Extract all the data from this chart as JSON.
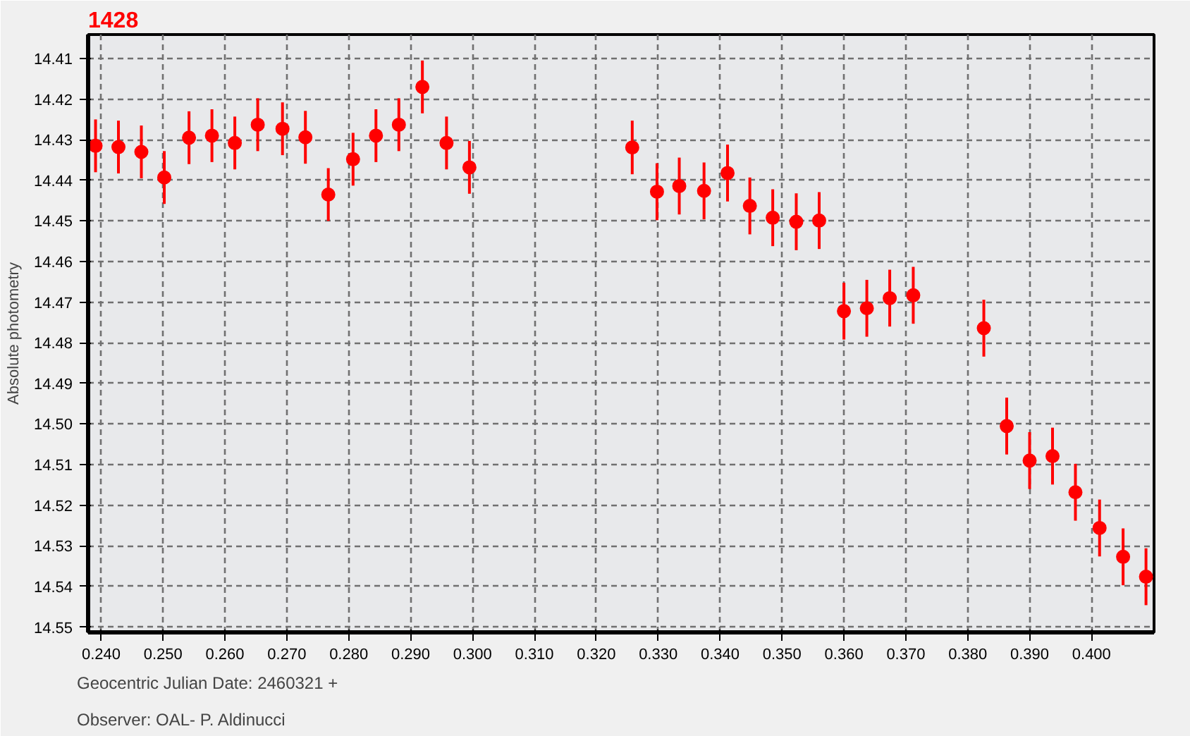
{
  "chart_data": {
    "type": "scatter",
    "title": "1428",
    "ylabel": "Absolute photometry",
    "xlabel": "Geocentric Julian Date: 2460321 +",
    "annotations": [
      "Observer: OAL- P. Aldinucci"
    ],
    "x": [
      0.2391,
      0.2428,
      0.2465,
      0.2502,
      0.2542,
      0.2579,
      0.2616,
      0.2653,
      0.2693,
      0.273,
      0.2767,
      0.2807,
      0.2844,
      0.2881,
      0.2919,
      0.2958,
      0.2995,
      0.3258,
      0.3298,
      0.3334,
      0.3374,
      0.3412,
      0.3448,
      0.3485,
      0.3523,
      0.356,
      0.36,
      0.3637,
      0.3674,
      0.3712,
      0.3826,
      0.3863,
      0.39,
      0.3937,
      0.3974,
      0.4013,
      0.4051,
      0.4088
    ],
    "series": [
      {
        "color": "#ff0000",
        "values": [
          14.4315,
          14.4318,
          14.433,
          14.4393,
          14.4295,
          14.429,
          14.4308,
          14.4263,
          14.4273,
          14.4294,
          14.4435,
          14.4348,
          14.429,
          14.4263,
          14.417,
          14.4308,
          14.4368,
          14.4319,
          14.4428,
          14.4414,
          14.4426,
          14.4382,
          14.4463,
          14.4492,
          14.4502,
          14.4499,
          14.4722,
          14.4715,
          14.469,
          14.4683,
          14.4764,
          14.5005,
          14.509,
          14.5079,
          14.5168,
          14.5256,
          14.5327,
          14.5376
        ],
        "errors": [
          0.0065,
          0.0065,
          0.0065,
          0.0065,
          0.0065,
          0.0065,
          0.0065,
          0.0065,
          0.0065,
          0.0065,
          0.0065,
          0.0065,
          0.0065,
          0.0065,
          0.0065,
          0.0065,
          0.0065,
          0.0066,
          0.007,
          0.007,
          0.007,
          0.007,
          0.007,
          0.007,
          0.007,
          0.007,
          0.007,
          0.007,
          0.007,
          0.007,
          0.007,
          0.007,
          0.007,
          0.007,
          0.007,
          0.007,
          0.007,
          0.007
        ]
      }
    ],
    "xlim": [
      0.2379,
      0.4101
    ],
    "ylim": [
      14.5513,
      14.4041
    ],
    "xticks": [
      {
        "value": 0.24,
        "label": "0.240"
      },
      {
        "value": 0.25,
        "label": "0.250"
      },
      {
        "value": 0.26,
        "label": "0.260"
      },
      {
        "value": 0.27,
        "label": "0.270"
      },
      {
        "value": 0.28,
        "label": "0.280"
      },
      {
        "value": 0.29,
        "label": "0.290"
      },
      {
        "value": 0.3,
        "label": "0.300"
      },
      {
        "value": 0.31,
        "label": "0.310"
      },
      {
        "value": 0.32,
        "label": "0.320"
      },
      {
        "value": 0.33,
        "label": "0.330"
      },
      {
        "value": 0.34,
        "label": "0.340"
      },
      {
        "value": 0.35,
        "label": "0.350"
      },
      {
        "value": 0.36,
        "label": "0.360"
      },
      {
        "value": 0.37,
        "label": "0.370"
      },
      {
        "value": 0.38,
        "label": "0.380"
      },
      {
        "value": 0.39,
        "label": "0.390"
      },
      {
        "value": 0.4,
        "label": "0.400"
      }
    ],
    "yticks": [
      14.41,
      14.42,
      14.43,
      14.44,
      14.45,
      14.46,
      14.47,
      14.48,
      14.49,
      {
        "value": 14.5,
        "label": "14.50"
      },
      14.51,
      14.52,
      14.53,
      14.54,
      14.55
    ],
    "grid": true,
    "marker": "circle"
  }
}
